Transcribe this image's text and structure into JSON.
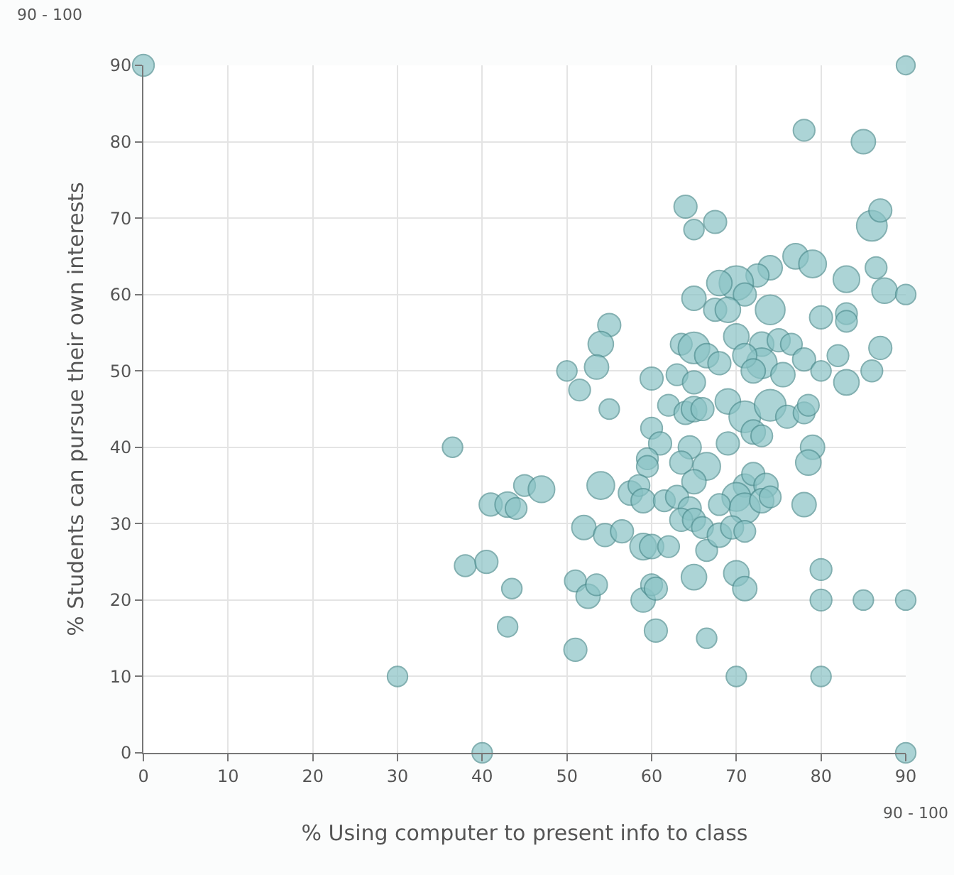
{
  "chart_data": {
    "type": "bubble",
    "xlabel": "% Using computer to present info to class",
    "ylabel": "% Students can pursue their own interests",
    "annotations": [
      "90 - 100",
      "90 - 100"
    ],
    "xlim": [
      0,
      90
    ],
    "xticks": [
      0,
      10,
      20,
      30,
      40,
      50,
      60,
      70,
      80,
      90
    ],
    "ylim": [
      0,
      90
    ],
    "yticks": [
      0,
      10,
      20,
      30,
      40,
      50,
      60,
      70,
      80,
      90
    ],
    "grid": true,
    "series": [
      {
        "color": "#8ac3c5",
        "x": [
          0,
          90,
          78,
          85,
          64,
          65,
          67.5,
          86,
          87,
          77,
          79,
          74,
          72.5,
          70,
          68,
          71,
          83,
          86.5,
          87.5,
          90,
          65,
          67.5,
          69,
          74,
          80,
          83,
          83,
          55,
          54,
          63.5,
          65,
          66.5,
          70,
          73,
          75,
          76.5,
          73,
          71,
          68,
          72,
          75.5,
          78,
          82,
          87,
          86,
          80,
          53.5,
          50,
          51.5,
          60,
          63,
          65,
          62,
          64,
          65,
          66,
          69,
          71,
          74,
          76,
          78,
          78.5,
          83,
          55,
          60,
          61,
          64.5,
          69,
          72,
          73,
          79,
          78.5,
          59.5,
          59.5,
          63.5,
          66.5,
          65,
          71,
          72,
          73.5,
          70,
          71,
          73,
          74,
          68,
          78,
          54,
          57.5,
          58.5,
          59,
          61.5,
          63,
          64.5,
          63.5,
          36.5,
          41,
          43,
          44,
          45,
          47,
          52,
          54.5,
          56.5,
          59,
          60,
          62,
          65,
          66,
          66.5,
          68,
          69.5,
          71,
          38,
          40.5,
          43.5,
          51,
          52.5,
          53.5,
          59,
          60,
          60.5,
          65,
          70,
          71,
          80,
          80,
          85,
          90,
          43,
          60.5,
          66.5,
          51,
          30,
          70,
          80,
          40,
          90
        ],
        "values": [
          90,
          90,
          81.5,
          80,
          71.5,
          68.5,
          69.5,
          69,
          71,
          65,
          64,
          63.5,
          62.5,
          61.5,
          61.5,
          60,
          62,
          63.5,
          60.5,
          60,
          59.5,
          58,
          58,
          58,
          57,
          57.5,
          56.5,
          56,
          53.5,
          53.5,
          53,
          52,
          54.5,
          53.5,
          54,
          53.5,
          51,
          52,
          51,
          50,
          49.5,
          51.5,
          52,
          53,
          50,
          50,
          50.5,
          50,
          47.5,
          49,
          49.5,
          48.5,
          45.5,
          44.5,
          45,
          45,
          46,
          44,
          45.5,
          44,
          44.5,
          45.5,
          48.5,
          45,
          42.5,
          40.5,
          40,
          40.5,
          42,
          41.5,
          40,
          38,
          38.5,
          37.5,
          38,
          37.5,
          35.5,
          35,
          36.5,
          35,
          33.5,
          32,
          33,
          33.5,
          32.5,
          32.5,
          35,
          34,
          35,
          33,
          33,
          33.5,
          32,
          30.5,
          40,
          32.5,
          32.5,
          32,
          35,
          34.5,
          29.5,
          28.5,
          29,
          27,
          27,
          27,
          30.5,
          29.5,
          26.5,
          28.5,
          29.5,
          29,
          24.5,
          25,
          21.5,
          22.5,
          20.5,
          22,
          20,
          22,
          21.5,
          23,
          23.5,
          21.5,
          24,
          20,
          20,
          20,
          16.5,
          16,
          15,
          13.5,
          10,
          10,
          10,
          0,
          0
        ],
        "sizes": [
          0.4,
          0.3,
          0.4,
          0.5,
          0.45,
          0.35,
          0.45,
          0.8,
          0.45,
          0.55,
          0.65,
          0.5,
          0.45,
          1,
          0.55,
          0.45,
          0.6,
          0.4,
          0.55,
          0.35,
          0.5,
          0.45,
          0.55,
          0.75,
          0.45,
          0.4,
          0.4,
          0.45,
          0.55,
          0.4,
          0.85,
          0.5,
          0.55,
          0.5,
          0.45,
          0.4,
          0.8,
          0.5,
          0.45,
          0.5,
          0.5,
          0.45,
          0.4,
          0.45,
          0.4,
          0.35,
          0.5,
          0.35,
          0.4,
          0.45,
          0.4,
          0.45,
          0.4,
          0.45,
          0.55,
          0.45,
          0.55,
          0.85,
          0.85,
          0.45,
          0.4,
          0.4,
          0.55,
          0.35,
          0.4,
          0.45,
          0.45,
          0.45,
          0.5,
          0.4,
          0.5,
          0.55,
          0.4,
          0.4,
          0.45,
          0.65,
          0.5,
          0.45,
          0.45,
          0.5,
          0.7,
          0.8,
          0.5,
          0.4,
          0.4,
          0.5,
          0.65,
          0.5,
          0.4,
          0.5,
          0.4,
          0.45,
          0.45,
          0.45,
          0.35,
          0.45,
          0.55,
          0.4,
          0.4,
          0.6,
          0.5,
          0.45,
          0.45,
          0.6,
          0.5,
          0.4,
          0.45,
          0.4,
          0.4,
          0.5,
          0.45,
          0.4,
          0.4,
          0.45,
          0.35,
          0.4,
          0.5,
          0.4,
          0.5,
          0.4,
          0.45,
          0.55,
          0.55,
          0.5,
          0.4,
          0.4,
          0.35,
          0.35,
          0.35,
          0.45,
          0.35,
          0.45,
          0.35,
          0.35,
          0.35,
          0.35,
          0.35
        ]
      }
    ]
  }
}
